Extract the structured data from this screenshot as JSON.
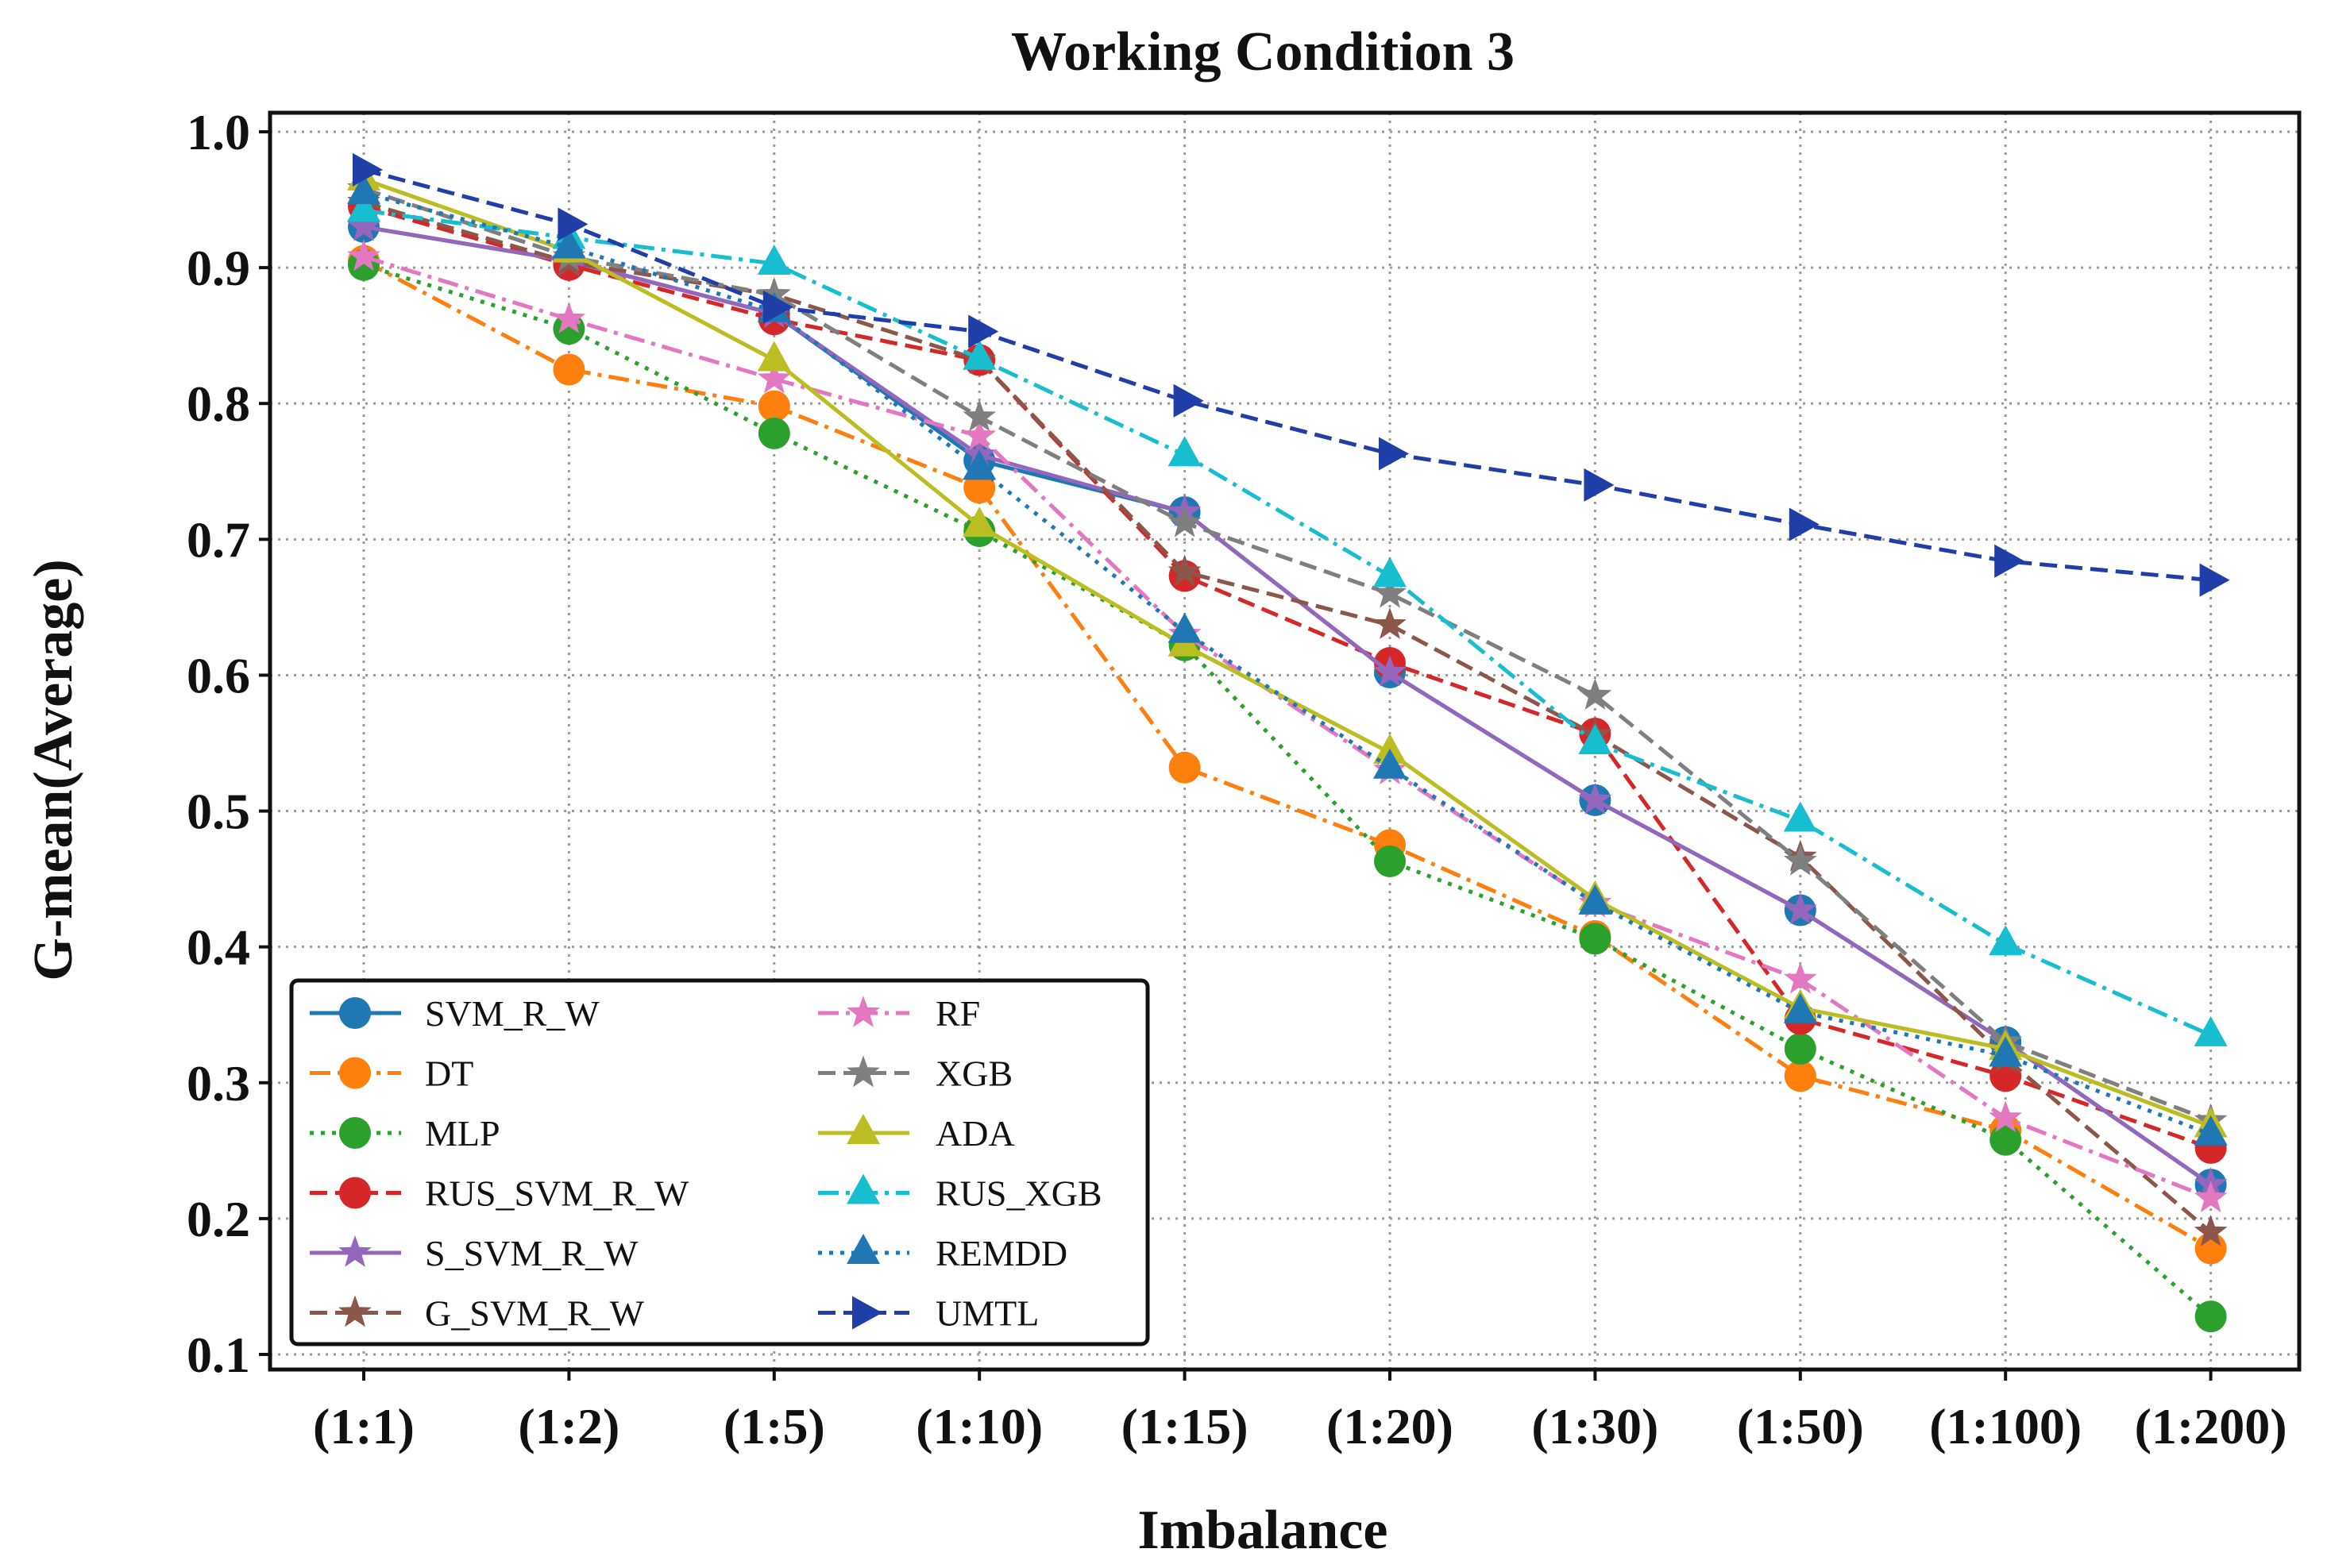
{
  "chart_data": {
    "type": "line",
    "title": "Working Condition 3",
    "xlabel": "Imbalance",
    "ylabel": "G-mean(Average)",
    "categories": [
      "(1:1)",
      "(1:2)",
      "(1:5)",
      "(1:10)",
      "(1:15)",
      "(1:20)",
      "(1:30)",
      "(1:50)",
      "(1:100)",
      "(1:200)"
    ],
    "ylim": [
      0.1,
      1.0
    ],
    "yticks": [
      "0.1",
      "0.2",
      "0.3",
      "0.4",
      "0.5",
      "0.6",
      "0.7",
      "0.8",
      "0.9",
      "1.0"
    ],
    "grid": true,
    "legend_position": "bottom-left",
    "series": [
      {
        "name": "SVM_R_W",
        "color": "#1f77b4",
        "dash": "solid",
        "marker": "circle",
        "values": [
          0.93,
          0.905,
          0.866,
          0.758,
          0.72,
          0.602,
          0.508,
          0.427,
          0.33,
          0.225
        ]
      },
      {
        "name": "DT",
        "color": "#ff7f0e",
        "dash": "dashdot",
        "marker": "circle",
        "values": [
          0.905,
          0.825,
          0.798,
          0.738,
          0.532,
          0.475,
          0.408,
          0.305,
          0.265,
          0.178
        ]
      },
      {
        "name": "MLP",
        "color": "#2ca02c",
        "dash": "dotted",
        "marker": "circle",
        "values": [
          0.902,
          0.855,
          0.778,
          0.706,
          0.622,
          0.463,
          0.406,
          0.325,
          0.258,
          0.128
        ]
      },
      {
        "name": "RUS_SVM_R_W",
        "color": "#d62728",
        "dash": "dashed",
        "marker": "circle",
        "values": [
          0.945,
          0.902,
          0.862,
          0.832,
          0.673,
          0.609,
          0.557,
          0.347,
          0.305,
          0.252
        ]
      },
      {
        "name": "S_SVM_R_W",
        "color": "#9467bd",
        "dash": "solid",
        "marker": "star",
        "values": [
          0.93,
          0.905,
          0.866,
          0.762,
          0.72,
          0.602,
          0.508,
          0.427,
          0.33,
          0.225
        ]
      },
      {
        "name": "G_SVM_R_W",
        "color": "#8c564b",
        "dash": "dashed",
        "marker": "star",
        "values": [
          0.948,
          0.904,
          0.88,
          0.832,
          0.676,
          0.637,
          0.556,
          0.466,
          0.318,
          0.19
        ]
      },
      {
        "name": "RF",
        "color": "#e377c2",
        "dash": "dashdot",
        "marker": "star",
        "values": [
          0.908,
          0.862,
          0.818,
          0.776,
          0.63,
          0.53,
          0.432,
          0.376,
          0.274,
          0.215
        ]
      },
      {
        "name": "XGB",
        "color": "#7f7f7f",
        "dash": "dashed",
        "marker": "star",
        "values": [
          0.958,
          0.908,
          0.88,
          0.79,
          0.712,
          0.66,
          0.585,
          0.463,
          0.33,
          0.272
        ]
      },
      {
        "name": "ADA",
        "color": "#bcbd22",
        "dash": "solid",
        "marker": "triangle-up",
        "values": [
          0.965,
          0.912,
          0.832,
          0.71,
          0.622,
          0.543,
          0.435,
          0.355,
          0.325,
          0.268
        ]
      },
      {
        "name": "RUS_XGB",
        "color": "#17becf",
        "dash": "dashdot",
        "marker": "triangle-up",
        "values": [
          0.942,
          0.922,
          0.903,
          0.833,
          0.762,
          0.673,
          0.55,
          0.493,
          0.402,
          0.335
        ]
      },
      {
        "name": "REMDD",
        "color": "#1f77b4",
        "dash": "dotted",
        "marker": "triangle-up",
        "values": [
          0.955,
          0.915,
          0.868,
          0.752,
          0.632,
          0.532,
          0.432,
          0.352,
          0.32,
          0.262
        ]
      },
      {
        "name": "UMTL",
        "color": "#1f3ea8",
        "dash": "dashed",
        "marker": "triangle-right",
        "values": [
          0.972,
          0.932,
          0.871,
          0.853,
          0.802,
          0.763,
          0.74,
          0.711,
          0.684,
          0.67
        ]
      }
    ]
  }
}
